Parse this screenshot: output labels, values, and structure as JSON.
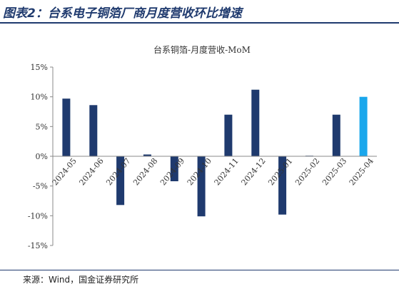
{
  "figure_title": "图表2：台系电子铜箔厂商月度营收环比增速",
  "source": "来源：Wind，国金证券研究所",
  "colors": {
    "bar": "#1f3a6e",
    "highlight": "#1aa7ec",
    "axis": "#888888"
  },
  "chart_data": {
    "type": "bar",
    "title": "台系铜箔-月度营收-MoM",
    "categories": [
      "2024-05",
      "2024-06",
      "2024-07",
      "2024-08",
      "2024-09",
      "2024-10",
      "2024-11",
      "2024-12",
      "2025-01",
      "2025-02",
      "2025-03",
      "2025-04"
    ],
    "values": [
      9.7,
      8.6,
      -8.2,
      0.3,
      -4.2,
      -10.1,
      7.0,
      11.2,
      -9.8,
      0.1,
      7.0,
      10.0
    ],
    "highlight_index": 11,
    "y_ticks": [
      "15%",
      "10%",
      "5%",
      "0%",
      "-5%",
      "-10%",
      "-15%"
    ],
    "ylim": [
      -15,
      15
    ],
    "xlabel": "",
    "ylabel": "",
    "grid": false
  }
}
